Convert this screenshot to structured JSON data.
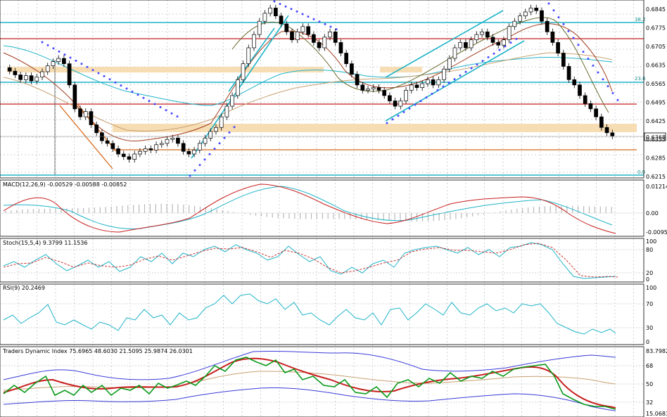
{
  "chart_data": [
    {
      "type": "candlestick",
      "panel": "price",
      "price_axis": {
        "ticks": [
          "0.6845",
          "0.6775",
          "0.6705",
          "0.6635",
          "0.6565",
          "0.6495",
          "0.6425",
          "0.6355",
          "0.6285",
          "0.6215"
        ],
        "ylim": [
          0.621,
          0.688
        ],
        "current_price": "0.6368"
      },
      "fibonacci_levels": [
        {
          "label": "38.2",
          "value": 0.6815
        },
        {
          "label": "23.6",
          "value": 0.6575
        },
        {
          "label": "0.0",
          "value": 0.6222
        }
      ],
      "horizontal_lines_red": [
        0.674,
        0.6497,
        0.633
      ],
      "support_zones": [
        {
          "from": 0.6617,
          "to": 0.6638
        },
        {
          "from": 0.64,
          "to": 0.6428
        }
      ],
      "indicators": [
        "Parabolic SAR",
        "Moving averages",
        "Trend channels"
      ],
      "trend_note": "rally from 0.628 to 0.684, decline to 0.6368 at right edge"
    },
    {
      "type": "line",
      "panel": "macd",
      "title": "MACD(12,26,9) -0.00529 -0.00588 -0.00852",
      "y_ticks": [
        "0.01214",
        "0.00",
        "-0.0095"
      ],
      "ylim": [
        -0.011,
        0.0132
      ]
    },
    {
      "type": "line",
      "panel": "stochastic",
      "title": "Stoch(15,5,4) 9.3799 11.1536",
      "y_ticks": [
        "100",
        "80",
        "20",
        "0"
      ],
      "ylim": [
        0,
        100
      ]
    },
    {
      "type": "line",
      "panel": "rsi",
      "title": "RSI(9) 20.2469",
      "y_ticks": [
        "100",
        "70",
        "30",
        "0"
      ],
      "ylim": [
        0,
        100
      ]
    },
    {
      "type": "line",
      "panel": "tdi",
      "title": "Traders Dynamic Index 75.6965 48.6030 21.5095 25.9874 26.0301",
      "y_ticks": [
        "83.7982",
        "68",
        "50",
        "32",
        "15.0683"
      ],
      "ylim": [
        15.0683,
        83.7982
      ]
    }
  ],
  "colors": {
    "cyan": "#20b4c8",
    "red": "#c81e1e",
    "orange": "#d8691a",
    "band": "#f7ddb4",
    "green": "#0a9a1a",
    "blue": "#3a3ad8",
    "sar": "#4848ff",
    "navy": "#202090",
    "tan": "#d0b080",
    "grid": "#9aa6b0"
  }
}
